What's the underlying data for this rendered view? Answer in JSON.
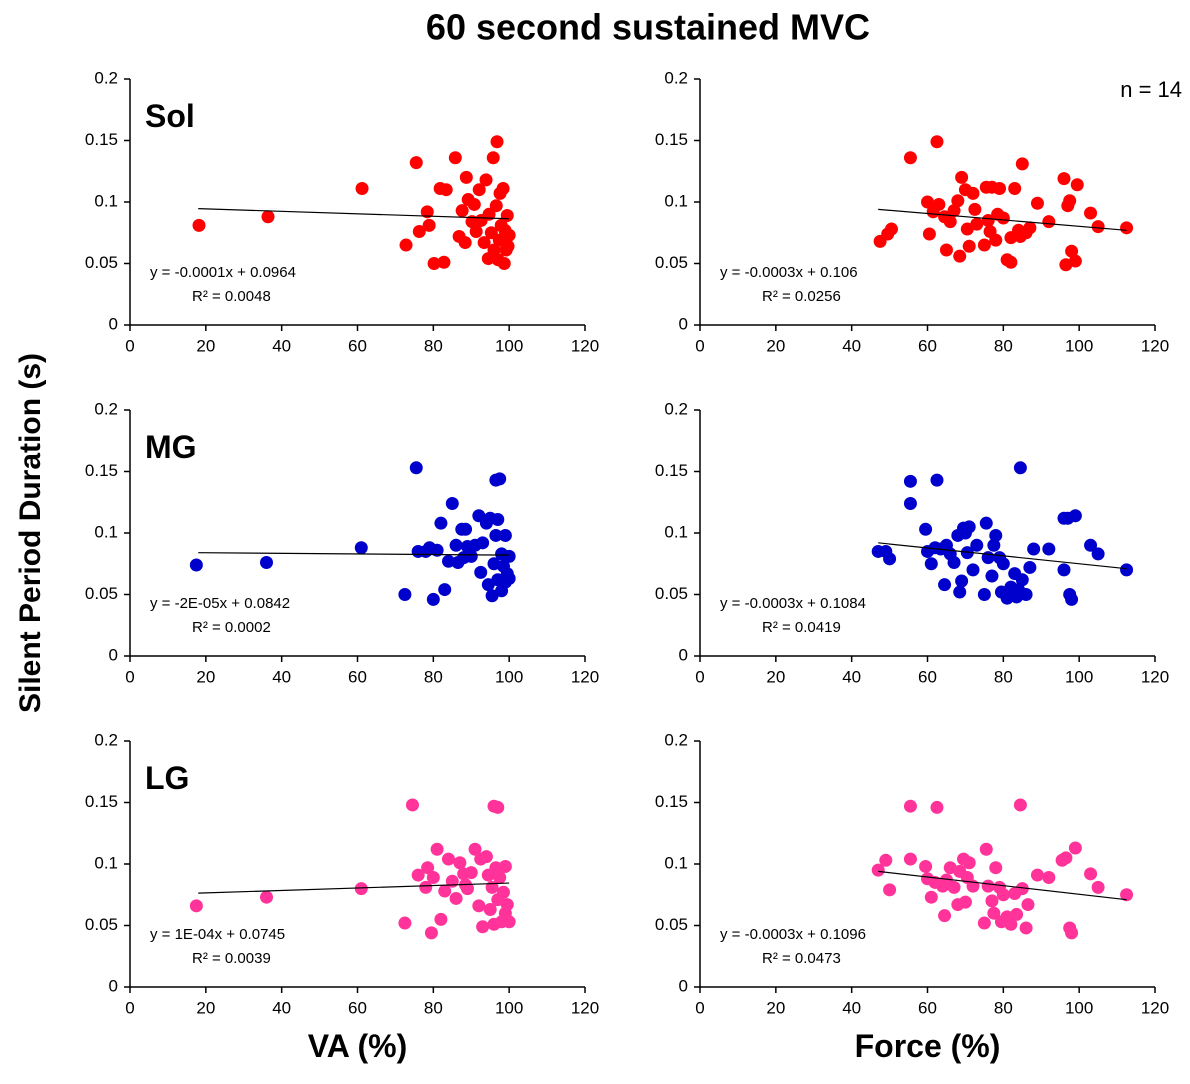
{
  "title": "60 second sustained MVC",
  "y_label": "Silent Period Duration (s)",
  "chart_data": [
    {
      "type": "scatter",
      "label": "Sol",
      "color": "#ff0000",
      "x": [
        18.2,
        36.4,
        61.2,
        72.8,
        75.5,
        76.3,
        78.4,
        78.9,
        80.2,
        81.8,
        82.8,
        83.4,
        85.8,
        86.8,
        87.6,
        88.4,
        88.7,
        89.2,
        90.2,
        90.8,
        91.3,
        92.1,
        92.6,
        93.4,
        93.9,
        94.5,
        94.7,
        95.3,
        95.8,
        96.0,
        96.6,
        96.8,
        97.1,
        97.4,
        97.6,
        97.9,
        98.4,
        98.7,
        98.9,
        99.2,
        99.5,
        99.7,
        100
      ],
      "y": [
        0.081,
        0.088,
        0.111,
        0.065,
        0.132,
        0.076,
        0.092,
        0.081,
        0.05,
        0.111,
        0.051,
        0.11,
        0.136,
        0.072,
        0.093,
        0.067,
        0.12,
        0.102,
        0.084,
        0.098,
        0.076,
        0.11,
        0.085,
        0.067,
        0.118,
        0.054,
        0.09,
        0.075,
        0.136,
        0.061,
        0.097,
        0.149,
        0.053,
        0.069,
        0.107,
        0.081,
        0.111,
        0.05,
        0.077,
        0.061,
        0.089,
        0.064,
        0.073
      ],
      "trendline": {
        "x": [
          18,
          100
        ],
        "y": [
          0.0946,
          0.0864
        ],
        "equation": "y = -0.0001x + 0.0964",
        "r_squared": "R² = 0.0048"
      },
      "xlim": [
        0,
        120
      ],
      "xticks": [
        0,
        20,
        40,
        60,
        80,
        100,
        120
      ],
      "ylim": [
        0,
        0.2
      ],
      "yticks": [
        0,
        0.05,
        0.1,
        0.15,
        0.2
      ]
    },
    {
      "type": "scatter",
      "annotation": "n = 14",
      "color": "#ff0000",
      "x": [
        47.5,
        49.5,
        50.5,
        55.5,
        60,
        60.5,
        61.5,
        62.5,
        63,
        64.5,
        65,
        66,
        67,
        68,
        68.5,
        69,
        70,
        70.5,
        71,
        72,
        72.5,
        73,
        75,
        75.5,
        76,
        76.5,
        77,
        78,
        78.5,
        79,
        80,
        81,
        82,
        82,
        83,
        84,
        84.5,
        85,
        86,
        87,
        89,
        92,
        96,
        96.5,
        97,
        97.5,
        98,
        99,
        99.5,
        103,
        105,
        112.5
      ],
      "y": [
        0.068,
        0.074,
        0.078,
        0.136,
        0.1,
        0.074,
        0.092,
        0.149,
        0.098,
        0.088,
        0.061,
        0.084,
        0.093,
        0.101,
        0.056,
        0.12,
        0.11,
        0.078,
        0.064,
        0.107,
        0.094,
        0.082,
        0.065,
        0.112,
        0.085,
        0.076,
        0.112,
        0.069,
        0.09,
        0.111,
        0.087,
        0.053,
        0.051,
        0.071,
        0.111,
        0.077,
        0.072,
        0.131,
        0.075,
        0.079,
        0.099,
        0.084,
        0.119,
        0.049,
        0.097,
        0.101,
        0.06,
        0.052,
        0.114,
        0.091,
        0.08,
        0.079
      ],
      "trendline": {
        "x": [
          47,
          112.5
        ],
        "y": [
          0.094,
          0.077
        ],
        "equation": "y = -0.0003x + 0.106",
        "r_squared": "R² = 0.0256"
      },
      "xlim": [
        0,
        120
      ],
      "xticks": [
        0,
        20,
        40,
        60,
        80,
        100,
        120
      ],
      "ylim": [
        0,
        0.2
      ],
      "yticks": [
        0,
        0.05,
        0.1,
        0.15,
        0.2
      ]
    },
    {
      "type": "scatter",
      "label": "MG",
      "color": "#0000cc",
      "x": [
        17.5,
        36,
        61,
        72.5,
        75.5,
        76,
        78,
        79,
        80,
        81,
        82,
        83,
        84,
        85,
        86,
        86.5,
        87.5,
        88,
        88.5,
        89,
        90,
        91,
        92,
        92.5,
        93,
        94,
        94.5,
        95,
        95.5,
        96,
        96.5,
        96.5,
        97,
        97,
        97.5,
        98,
        98,
        98.5,
        99,
        99,
        99.5,
        100,
        100
      ],
      "y": [
        0.074,
        0.076,
        0.088,
        0.05,
        0.153,
        0.085,
        0.085,
        0.088,
        0.046,
        0.086,
        0.108,
        0.054,
        0.077,
        0.124,
        0.09,
        0.076,
        0.103,
        0.08,
        0.103,
        0.089,
        0.081,
        0.09,
        0.114,
        0.068,
        0.092,
        0.108,
        0.058,
        0.112,
        0.049,
        0.075,
        0.143,
        0.098,
        0.111,
        0.062,
        0.144,
        0.083,
        0.053,
        0.073,
        0.098,
        0.06,
        0.067,
        0.063,
        0.081
      ],
      "trendline": {
        "x": [
          18,
          100
        ],
        "y": [
          0.084,
          0.082
        ],
        "equation": "y = -2E-05x + 0.0842",
        "r_squared": "R² = 0.0002"
      },
      "xlim": [
        0,
        120
      ],
      "xticks": [
        0,
        20,
        40,
        60,
        80,
        100,
        120
      ],
      "ylim": [
        0,
        0.2
      ],
      "yticks": [
        0,
        0.05,
        0.1,
        0.15,
        0.2
      ]
    },
    {
      "type": "scatter",
      "color": "#0000cc",
      "x": [
        47,
        49,
        50,
        55.5,
        55.5,
        59.5,
        60,
        61,
        62,
        62.5,
        63.5,
        64.5,
        65,
        66,
        67,
        68,
        68.5,
        69,
        69.5,
        70,
        70.5,
        71,
        72,
        73,
        75,
        75.5,
        76,
        77,
        77.5,
        78,
        79,
        79.5,
        80,
        81,
        82,
        83,
        83.5,
        84,
        84.5,
        85,
        86,
        87,
        88,
        92,
        96,
        96,
        97,
        97.5,
        98,
        99,
        103,
        105,
        112.5
      ],
      "y": [
        0.085,
        0.085,
        0.079,
        0.142,
        0.124,
        0.103,
        0.085,
        0.075,
        0.088,
        0.143,
        0.087,
        0.058,
        0.09,
        0.083,
        0.076,
        0.098,
        0.052,
        0.061,
        0.104,
        0.1,
        0.084,
        0.105,
        0.07,
        0.09,
        0.05,
        0.108,
        0.08,
        0.065,
        0.09,
        0.098,
        0.08,
        0.052,
        0.075,
        0.047,
        0.056,
        0.067,
        0.048,
        0.054,
        0.153,
        0.062,
        0.05,
        0.072,
        0.087,
        0.087,
        0.07,
        0.112,
        0.112,
        0.05,
        0.046,
        0.114,
        0.09,
        0.083,
        0.07
      ],
      "trendline": {
        "x": [
          47,
          112.5
        ],
        "y": [
          0.092,
          0.071
        ],
        "equation": "y = -0.0003x + 0.1084",
        "r_squared": "R² = 0.0419"
      },
      "xlim": [
        0,
        120
      ],
      "xticks": [
        0,
        20,
        40,
        60,
        80,
        100,
        120
      ],
      "ylim": [
        0,
        0.2
      ],
      "yticks": [
        0,
        0.05,
        0.1,
        0.15,
        0.2
      ]
    },
    {
      "type": "scatter",
      "label": "LG",
      "x_label": "VA (%)",
      "color": "#ff3399",
      "x": [
        17.5,
        36,
        61,
        72.5,
        74.5,
        76,
        78,
        78.5,
        79.5,
        80,
        81,
        82,
        83,
        84,
        85,
        86,
        87,
        88,
        88.5,
        89,
        90,
        91,
        92,
        92.5,
        93,
        94,
        94.5,
        95,
        95.5,
        96,
        96,
        96.5,
        97,
        97,
        97.5,
        98,
        98.5,
        99,
        99,
        99.5,
        100
      ],
      "y": [
        0.066,
        0.073,
        0.08,
        0.052,
        0.148,
        0.091,
        0.081,
        0.097,
        0.044,
        0.089,
        0.112,
        0.055,
        0.078,
        0.104,
        0.086,
        0.072,
        0.101,
        0.092,
        0.083,
        0.08,
        0.093,
        0.112,
        0.066,
        0.104,
        0.049,
        0.106,
        0.091,
        0.063,
        0.081,
        0.147,
        0.051,
        0.097,
        0.146,
        0.071,
        0.089,
        0.053,
        0.077,
        0.098,
        0.06,
        0.067,
        0.053
      ],
      "trendline": {
        "x": [
          18,
          100
        ],
        "y": [
          0.0763,
          0.0845
        ],
        "equation": "y = 1E-04x + 0.0745",
        "r_squared": "R² = 0.0039"
      },
      "xlim": [
        0,
        120
      ],
      "xticks": [
        0,
        20,
        40,
        60,
        80,
        100,
        120
      ],
      "ylim": [
        0,
        0.2
      ],
      "yticks": [
        0,
        0.05,
        0.1,
        0.15,
        0.2
      ]
    },
    {
      "type": "scatter",
      "x_label": "Force (%)",
      "color": "#ff3399",
      "x": [
        47,
        49,
        50,
        55.5,
        55.5,
        59.5,
        60,
        61,
        62,
        62.5,
        64,
        64.5,
        65,
        66,
        67,
        68,
        68.5,
        69.5,
        70,
        70.5,
        71,
        72,
        75,
        75.5,
        76,
        77,
        77.5,
        78,
        79,
        79.5,
        80,
        81,
        82,
        83,
        83.5,
        84.5,
        85,
        86,
        86.5,
        89,
        92,
        95.5,
        96.5,
        97.5,
        98,
        99,
        103,
        105,
        112.5
      ],
      "y": [
        0.095,
        0.103,
        0.079,
        0.147,
        0.104,
        0.098,
        0.088,
        0.073,
        0.085,
        0.146,
        0.082,
        0.058,
        0.087,
        0.097,
        0.081,
        0.067,
        0.094,
        0.104,
        0.069,
        0.089,
        0.101,
        0.082,
        0.052,
        0.112,
        0.082,
        0.07,
        0.06,
        0.097,
        0.081,
        0.053,
        0.075,
        0.057,
        0.051,
        0.076,
        0.059,
        0.148,
        0.08,
        0.048,
        0.067,
        0.091,
        0.089,
        0.103,
        0.105,
        0.048,
        0.044,
        0.113,
        0.092,
        0.081,
        0.075
      ],
      "trendline": {
        "x": [
          47,
          112.5
        ],
        "y": [
          0.094,
          0.071
        ],
        "equation": "y = -0.0003x + 0.1096",
        "r_squared": "R² = 0.0473"
      },
      "xlim": [
        0,
        120
      ],
      "xticks": [
        0,
        20,
        40,
        60,
        80,
        100,
        120
      ],
      "ylim": [
        0,
        0.2
      ],
      "yticks": [
        0,
        0.05,
        0.1,
        0.15,
        0.2
      ]
    }
  ]
}
